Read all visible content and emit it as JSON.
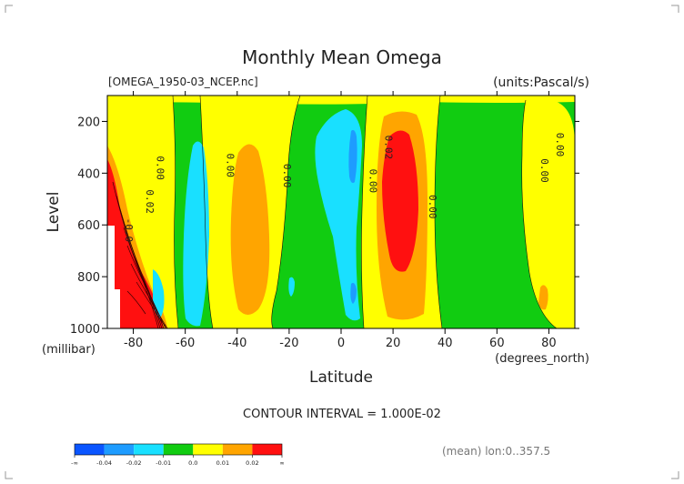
{
  "chart_data": {
    "type": "heatmap",
    "title": "Monthly Mean Omega",
    "subtitle_left": "[OMEGA_1950-03_NCEP.nc]",
    "subtitle_right": "(units:Pascal/s)",
    "ylabel": "Level",
    "yunit": "(millibar)",
    "xlabel": "Latitude",
    "xunit": "(degrees_north)",
    "xlim": [
      -90,
      90
    ],
    "ylim": [
      1000,
      100
    ],
    "x_ticks": [
      -80,
      -60,
      -40,
      -20,
      0,
      20,
      40,
      60,
      80
    ],
    "y_ticks": [
      200,
      400,
      600,
      800,
      1000
    ],
    "contour_interval_label": "CONTOUR INTERVAL = 1.000E-02",
    "mean_label": "(mean) lon:0..357.5",
    "contour_labels": [
      {
        "text": "0.00",
        "lat": -71,
        "level": 380
      },
      {
        "text": "0.02",
        "lat": -75,
        "level": 510
      },
      {
        "text": "-0.0",
        "lat": -83,
        "level": 620
      },
      {
        "text": "0.00",
        "lat": -44,
        "level": 370
      },
      {
        "text": "0.00",
        "lat": -22,
        "level": 410
      },
      {
        "text": "0.00",
        "lat": 11,
        "level": 430
      },
      {
        "text": "0.02",
        "lat": 17,
        "level": 300
      },
      {
        "text": "0.00",
        "lat": 34,
        "level": 530
      },
      {
        "text": "0.00",
        "lat": 77,
        "level": 390
      },
      {
        "text": "0.00",
        "lat": 83,
        "level": 290
      }
    ],
    "legend": {
      "colors": [
        "#0a55ff",
        "#1e9cff",
        "#19e0ff",
        "#11cc11",
        "#ffff00",
        "#ffa500",
        "#ff1010"
      ],
      "labels": [
        "-∞",
        "-0.04",
        "-0.02",
        "-0.01",
        "0.0",
        "0.01",
        "0.02",
        "∞"
      ]
    },
    "colors": {
      "green": "#11cc11",
      "yellow": "#ffff00",
      "orange": "#ffa500",
      "red": "#ff1010",
      "cyan": "#19e0ff",
      "blue": "#1e9cff"
    }
  }
}
